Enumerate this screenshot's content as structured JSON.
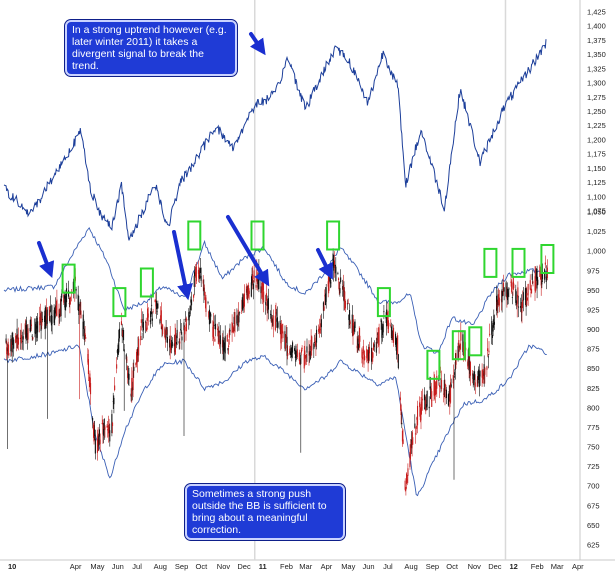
{
  "chart_data": [
    {
      "type": "line",
      "panel": "top",
      "y_ticks": [
        "1,425",
        "1,400",
        "1,375",
        "1,350",
        "1,325",
        "1,300",
        "1,275",
        "1,250",
        "1,225",
        "1,200",
        "1,175",
        "1,150",
        "1,125",
        "1,100",
        "1,075"
      ],
      "ylim": [
        1075,
        1425
      ],
      "color": "#1d3f9a",
      "series": [
        {
          "values": [
            {
              "x": "2010-01-01",
              "y": 1115
            },
            {
              "x": "2010-02-08",
              "y": 1068
            },
            {
              "x": "2010-03-01",
              "y": 1110
            },
            {
              "x": "2010-04-23",
              "y": 1215
            },
            {
              "x": "2010-05-07",
              "y": 1115
            },
            {
              "x": "2010-05-20",
              "y": 1070
            },
            {
              "x": "2010-06-07",
              "y": 1050
            },
            {
              "x": "2010-06-21",
              "y": 1120
            },
            {
              "x": "2010-07-02",
              "y": 1020
            },
            {
              "x": "2010-08-09",
              "y": 1125
            },
            {
              "x": "2010-08-27",
              "y": 1045
            },
            {
              "x": "2010-09-15",
              "y": 1125
            },
            {
              "x": "2010-10-15",
              "y": 1180
            },
            {
              "x": "2010-11-05",
              "y": 1225
            },
            {
              "x": "2010-11-30",
              "y": 1185
            },
            {
              "x": "2010-12-31",
              "y": 1260
            },
            {
              "x": "2011-01-31",
              "y": 1280
            },
            {
              "x": "2011-02-18",
              "y": 1345
            },
            {
              "x": "2011-03-16",
              "y": 1255
            },
            {
              "x": "2011-04-29",
              "y": 1365
            },
            {
              "x": "2011-05-20",
              "y": 1335
            },
            {
              "x": "2011-06-15",
              "y": 1265
            },
            {
              "x": "2011-07-07",
              "y": 1355
            },
            {
              "x": "2011-07-29",
              "y": 1290
            },
            {
              "x": "2011-08-08",
              "y": 1120
            },
            {
              "x": "2011-08-31",
              "y": 1218
            },
            {
              "x": "2011-09-22",
              "y": 1130
            },
            {
              "x": "2011-10-04",
              "y": 1080
            },
            {
              "x": "2011-10-27",
              "y": 1290
            },
            {
              "x": "2011-11-25",
              "y": 1160
            },
            {
              "x": "2011-12-30",
              "y": 1258
            },
            {
              "x": "2012-01-31",
              "y": 1315
            },
            {
              "x": "2012-02-29",
              "y": 1370
            }
          ]
        }
      ]
    },
    {
      "type": "candlestick",
      "panel": "bottom",
      "y_ticks": [
        "1,050",
        "1,025",
        "1,000",
        "975",
        "950",
        "925",
        "900",
        "875",
        "850",
        "825",
        "800",
        "775",
        "750",
        "725",
        "700",
        "675",
        "650",
        "625"
      ],
      "ylim": [
        625,
        1050
      ],
      "x_ticks": [
        "10",
        "Apr",
        "May",
        "Jun",
        "Jul",
        "Aug",
        "Sep",
        "Oct",
        "Nov",
        "Dec",
        "11",
        "Feb",
        "Mar",
        "Apr",
        "May",
        "Jun",
        "Jul",
        "Aug",
        "Sep",
        "Oct",
        "Nov",
        "Dec",
        "12",
        "Feb",
        "Mar",
        "Apr"
      ],
      "candle_colors": {
        "up": "#111111",
        "down": "#c81e1e"
      },
      "bollinger_color": "#3a5fb5",
      "highlight_color": "#2fd62f",
      "arrow_color": "#1a2fd0",
      "price_path": [
        {
          "x": "2010-01-01",
          "y": 875
        },
        {
          "x": "2010-03-20",
          "y": 925
        },
        {
          "x": "2010-04-15",
          "y": 955
        },
        {
          "x": "2010-05-01",
          "y": 880
        },
        {
          "x": "2010-05-15",
          "y": 740
        },
        {
          "x": "2010-05-25",
          "y": 780
        },
        {
          "x": "2010-06-05",
          "y": 760
        },
        {
          "x": "2010-06-20",
          "y": 910
        },
        {
          "x": "2010-07-05",
          "y": 820
        },
        {
          "x": "2010-07-20",
          "y": 900
        },
        {
          "x": "2010-08-10",
          "y": 930
        },
        {
          "x": "2010-09-01",
          "y": 880
        },
        {
          "x": "2010-09-20",
          "y": 895
        },
        {
          "x": "2010-10-10",
          "y": 980
        },
        {
          "x": "2010-11-01",
          "y": 900
        },
        {
          "x": "2010-11-20",
          "y": 880
        },
        {
          "x": "2010-12-15",
          "y": 935
        },
        {
          "x": "2011-01-05",
          "y": 970
        },
        {
          "x": "2011-01-25",
          "y": 920
        },
        {
          "x": "2011-02-20",
          "y": 875
        },
        {
          "x": "2011-03-15",
          "y": 860
        },
        {
          "x": "2011-04-05",
          "y": 900
        },
        {
          "x": "2011-04-25",
          "y": 985
        },
        {
          "x": "2011-05-15",
          "y": 930
        },
        {
          "x": "2011-06-10",
          "y": 860
        },
        {
          "x": "2011-06-25",
          "y": 870
        },
        {
          "x": "2011-07-10",
          "y": 920
        },
        {
          "x": "2011-07-28",
          "y": 880
        },
        {
          "x": "2011-08-08",
          "y": 700
        },
        {
          "x": "2011-08-25",
          "y": 790
        },
        {
          "x": "2011-09-10",
          "y": 810
        },
        {
          "x": "2011-09-28",
          "y": 840
        },
        {
          "x": "2011-10-10",
          "y": 805
        },
        {
          "x": "2011-10-28",
          "y": 890
        },
        {
          "x": "2011-11-20",
          "y": 830
        },
        {
          "x": "2011-12-05",
          "y": 860
        },
        {
          "x": "2011-12-20",
          "y": 940
        },
        {
          "x": "2012-01-10",
          "y": 955
        },
        {
          "x": "2012-01-25",
          "y": 930
        },
        {
          "x": "2012-02-10",
          "y": 960
        },
        {
          "x": "2012-03-01",
          "y": 975
        }
      ],
      "upper_band": [
        {
          "x": "2010-01-01",
          "y": 950
        },
        {
          "x": "2010-03-15",
          "y": 955
        },
        {
          "x": "2010-04-20",
          "y": 1010
        },
        {
          "x": "2010-05-05",
          "y": 1030
        },
        {
          "x": "2010-06-01",
          "y": 985
        },
        {
          "x": "2010-06-25",
          "y": 925
        },
        {
          "x": "2010-07-25",
          "y": 935
        },
        {
          "x": "2010-08-20",
          "y": 955
        },
        {
          "x": "2010-09-20",
          "y": 940
        },
        {
          "x": "2010-10-20",
          "y": 1010
        },
        {
          "x": "2010-11-15",
          "y": 965
        },
        {
          "x": "2010-12-15",
          "y": 990
        },
        {
          "x": "2011-01-15",
          "y": 1005
        },
        {
          "x": "2011-02-15",
          "y": 960
        },
        {
          "x": "2011-03-15",
          "y": 945
        },
        {
          "x": "2011-04-15",
          "y": 975
        },
        {
          "x": "2011-05-05",
          "y": 1005
        },
        {
          "x": "2011-06-01",
          "y": 975
        },
        {
          "x": "2011-07-01",
          "y": 935
        },
        {
          "x": "2011-07-25",
          "y": 935
        },
        {
          "x": "2011-08-15",
          "y": 945
        },
        {
          "x": "2011-09-01",
          "y": 880
        },
        {
          "x": "2011-09-25",
          "y": 870
        },
        {
          "x": "2011-10-15",
          "y": 915
        },
        {
          "x": "2011-11-15",
          "y": 905
        },
        {
          "x": "2011-12-10",
          "y": 945
        },
        {
          "x": "2012-01-05",
          "y": 970
        },
        {
          "x": "2012-02-05",
          "y": 975
        },
        {
          "x": "2012-03-01",
          "y": 975
        }
      ],
      "lower_band": [
        {
          "x": "2010-01-01",
          "y": 860
        },
        {
          "x": "2010-03-15",
          "y": 870
        },
        {
          "x": "2010-04-20",
          "y": 880
        },
        {
          "x": "2010-05-15",
          "y": 760
        },
        {
          "x": "2010-06-05",
          "y": 710
        },
        {
          "x": "2010-06-25",
          "y": 770
        },
        {
          "x": "2010-07-25",
          "y": 825
        },
        {
          "x": "2010-08-20",
          "y": 855
        },
        {
          "x": "2010-09-20",
          "y": 860
        },
        {
          "x": "2010-10-20",
          "y": 825
        },
        {
          "x": "2010-11-20",
          "y": 835
        },
        {
          "x": "2010-12-20",
          "y": 860
        },
        {
          "x": "2011-01-15",
          "y": 865
        },
        {
          "x": "2011-02-15",
          "y": 845
        },
        {
          "x": "2011-03-15",
          "y": 825
        },
        {
          "x": "2011-04-15",
          "y": 840
        },
        {
          "x": "2011-05-05",
          "y": 860
        },
        {
          "x": "2011-06-01",
          "y": 845
        },
        {
          "x": "2011-07-01",
          "y": 830
        },
        {
          "x": "2011-07-25",
          "y": 840
        },
        {
          "x": "2011-08-10",
          "y": 760
        },
        {
          "x": "2011-08-25",
          "y": 685
        },
        {
          "x": "2011-09-15",
          "y": 725
        },
        {
          "x": "2011-10-10",
          "y": 770
        },
        {
          "x": "2011-11-01",
          "y": 805
        },
        {
          "x": "2011-12-01",
          "y": 810
        },
        {
          "x": "2012-01-05",
          "y": 835
        },
        {
          "x": "2012-02-05",
          "y": 880
        },
        {
          "x": "2012-03-01",
          "y": 870
        }
      ],
      "highlight_boxes": [
        {
          "x": "2010-04-05",
          "y": "965"
        },
        {
          "x": "2010-06-18",
          "y": "935"
        },
        {
          "x": "2010-07-28",
          "y": "960"
        },
        {
          "x": "2010-10-05",
          "y": "1020"
        },
        {
          "x": "2011-01-05",
          "y": "1020"
        },
        {
          "x": "2011-04-25",
          "y": "1020"
        },
        {
          "x": "2011-07-08",
          "y": "935"
        },
        {
          "x": "2011-09-18",
          "y": "855"
        },
        {
          "x": "2011-10-25",
          "y": "880"
        },
        {
          "x": "2011-11-18",
          "y": "885"
        },
        {
          "x": "2011-12-10",
          "y": "985"
        },
        {
          "x": "2012-01-20",
          "y": "985"
        },
        {
          "x": "2012-03-02",
          "y": "990"
        }
      ]
    }
  ],
  "callouts": {
    "top": "In a strong uptrend however (e.g. later winter 2011) it takes a divergent signal to break the trend.",
    "bottom": "Sometimes a strong push outside the BB is sufficient to bring about a meaningful correction."
  }
}
